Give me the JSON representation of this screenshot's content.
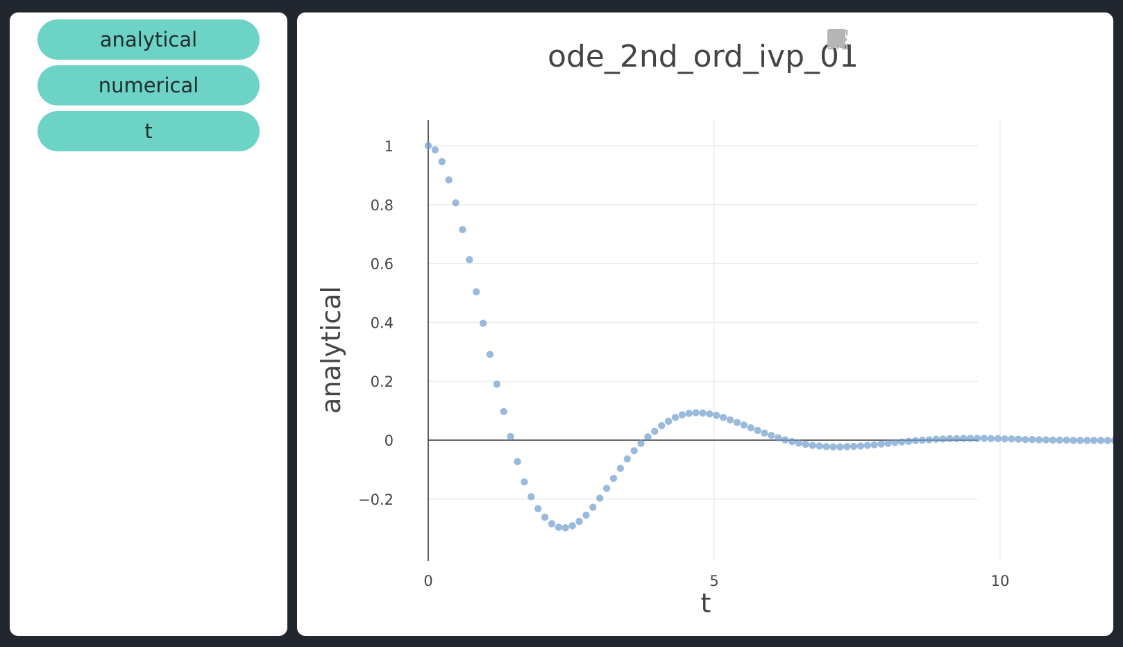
{
  "sidebar": {
    "buttons": [
      {
        "label": "analytical"
      },
      {
        "label": "numerical"
      },
      {
        "label": "t"
      }
    ]
  },
  "modebar": {
    "icons": [
      "scatter-icon",
      "line-chart-icon",
      "zoom-icon",
      "pan-icon",
      "zoom-in-icon",
      "zoom-out-icon",
      "autoscale-icon",
      "reset-axes-home-icon"
    ]
  },
  "colors": {
    "accent": "#6ed3c7",
    "marker": "#6f9ccd",
    "frame": "#22272f"
  },
  "chart_data": {
    "type": "scatter",
    "title": "ode_2nd_ord_ivp_01",
    "xlabel": "t",
    "ylabel": "analytical",
    "xlim": [
      0,
      12.8
    ],
    "ylim": [
      -0.39,
      1.08
    ],
    "xticks": [
      0,
      5,
      10
    ],
    "yticks": [
      1,
      0.8,
      0.6,
      0.4,
      0.2,
      0,
      -0.2
    ],
    "ytick_labels": [
      "1",
      "0.8",
      "0.6",
      "0.4",
      "0.2",
      "0",
      "−0.2"
    ],
    "grid": true,
    "series": [
      {
        "name": "analytical",
        "x": [
          0,
          0.12,
          0.24,
          0.36,
          0.48,
          0.6,
          0.72,
          0.84,
          0.96,
          1.08,
          1.2,
          1.32,
          1.44,
          1.56,
          1.68,
          1.8,
          1.92,
          2.04,
          2.16,
          2.28,
          2.4,
          2.52,
          2.64,
          2.76,
          2.88,
          3,
          3.12,
          3.24,
          3.36,
          3.48,
          3.6,
          3.72,
          3.84,
          3.96,
          4.08,
          4.2,
          4.32,
          4.44,
          4.56,
          4.68,
          4.8,
          4.92,
          5.04,
          5.16,
          5.28,
          5.4,
          5.52,
          5.64,
          5.76,
          5.88,
          6,
          6.12,
          6.24,
          6.36,
          6.48,
          6.6,
          6.72,
          6.84,
          6.96,
          7.08,
          7.2,
          7.32,
          7.44,
          7.56,
          7.68,
          7.8,
          7.92,
          8.04,
          8.16,
          8.28,
          8.4,
          8.52,
          8.64,
          8.76,
          8.88,
          9,
          9.12,
          9.24,
          9.36,
          9.48,
          9.6,
          9.72,
          9.84,
          9.96,
          10.08,
          10.2,
          10.32,
          10.44,
          10.56,
          10.68,
          10.8,
          10.92,
          11.04,
          11.16,
          11.28,
          11.4,
          11.52,
          11.64,
          11.76,
          11.88,
          12
        ],
        "y": [
          1,
          0.986,
          0.946,
          0.884,
          0.806,
          0.715,
          0.613,
          0.504,
          0.397,
          0.291,
          0.19,
          0.097,
          0.012,
          -0.073,
          -0.142,
          -0.192,
          -0.233,
          -0.262,
          -0.284,
          -0.296,
          -0.298,
          -0.291,
          -0.276,
          -0.255,
          -0.228,
          -0.197,
          -0.164,
          -0.13,
          -0.096,
          -0.064,
          -0.036,
          -0.011,
          0.011,
          0.03,
          0.049,
          0.064,
          0.077,
          0.086,
          0.091,
          0.093,
          0.092,
          0.089,
          0.084,
          0.077,
          0.069,
          0.06,
          0.051,
          0.042,
          0.033,
          0.024,
          0.016,
          0.008,
          0.001,
          -0.005,
          -0.01,
          -0.014,
          -0.018,
          -0.02,
          -0.022,
          -0.023,
          -0.023,
          -0.022,
          -0.021,
          -0.02,
          -0.018,
          -0.016,
          -0.013,
          -0.011,
          -0.008,
          -0.006,
          -0.004,
          -0.002,
          0,
          0.001,
          0.003,
          0.004,
          0.005,
          0.005,
          0.006,
          0.006,
          0.006,
          0.006,
          0.005,
          0.005,
          0.004,
          0.004,
          0.003,
          0.002,
          0.002,
          0.001,
          0.001,
          0,
          0,
          0,
          -0.001,
          -0.001,
          -0.001,
          -0.001,
          -0.001,
          -0.001,
          -0.001
        ]
      }
    ]
  }
}
